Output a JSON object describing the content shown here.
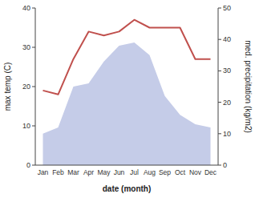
{
  "chart_data": {
    "type": "line",
    "categories": [
      "Jan",
      "Feb",
      "Mar",
      "Apr",
      "May",
      "Jun",
      "Jul",
      "Aug",
      "Sep",
      "Oct",
      "Nov",
      "Dec"
    ],
    "series": [
      {
        "type": "area",
        "axis": "y2",
        "color": "#c5cce8",
        "values": [
          10,
          12,
          25,
          26,
          33,
          38,
          39,
          35,
          22,
          16,
          13,
          12
        ]
      },
      {
        "type": "line",
        "color": "#c0504d",
        "values": [
          19,
          18,
          27,
          34,
          33,
          34,
          37,
          35,
          35,
          35,
          27,
          27
        ]
      }
    ],
    "xlabel": "date (month)",
    "ylabel": "max temp (C)",
    "y2label": "med. precipitation (kg/m2)",
    "ylim": [
      0,
      40
    ],
    "yticks": [
      0,
      10,
      20,
      30,
      40
    ],
    "y2lim": [
      0,
      50
    ],
    "y2ticks": [
      0,
      10,
      20,
      30,
      40,
      50
    ],
    "grid": false
  }
}
